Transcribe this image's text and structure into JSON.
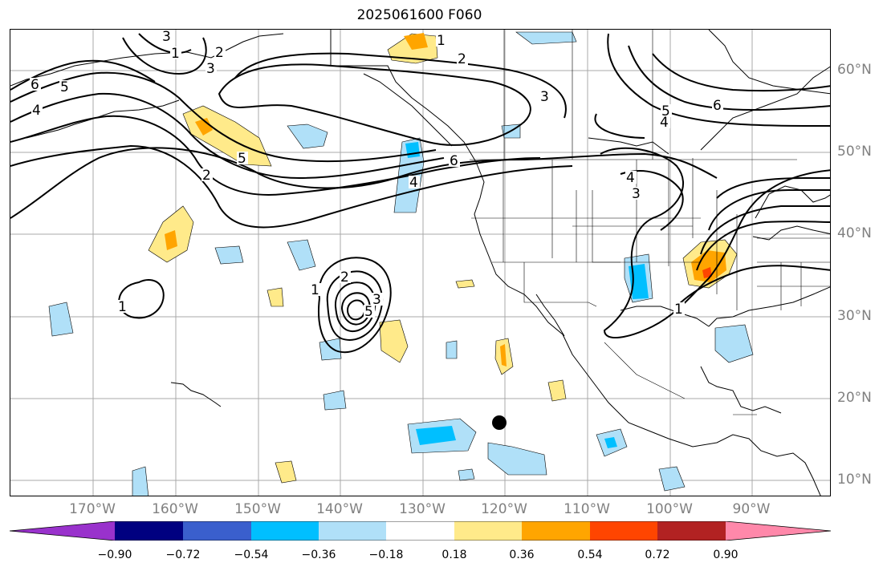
{
  "title": "2025061600 F060",
  "x_ticks": [
    "170°W",
    "160°W",
    "150°W",
    "140°W",
    "130°W",
    "120°W",
    "110°W",
    "100°W",
    "90°W"
  ],
  "y_ticks": [
    "60°N",
    "50°N",
    "40°N",
    "30°N",
    "20°N",
    "10°N"
  ],
  "colorbar": {
    "ticks": [
      "−0.90",
      "−0.72",
      "−0.54",
      "−0.36",
      "−0.18",
      "0.18",
      "0.36",
      "0.54",
      "0.72",
      "0.90"
    ],
    "colors": [
      "#9932cc",
      "#000080",
      "#3a5fcd",
      "#00bfff",
      "#b0e0f8",
      "#ffffff",
      "#ffea8a",
      "#ffa500",
      "#ff4500",
      "#b22222",
      "#ff88aa"
    ]
  },
  "contour_labels": [
    "1",
    "2",
    "3",
    "4",
    "5",
    "6"
  ],
  "marker": "black-dot"
}
